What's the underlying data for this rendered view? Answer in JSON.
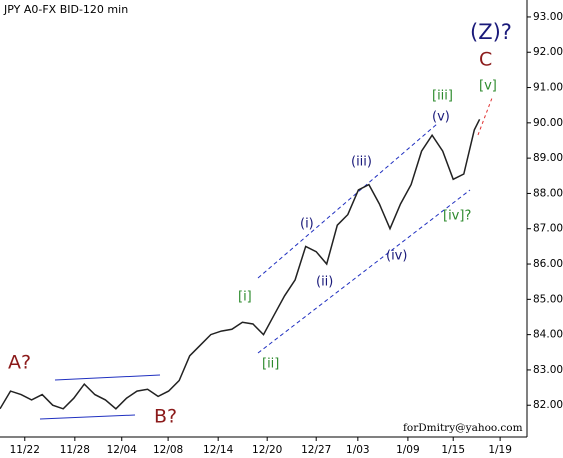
{
  "chart_data": {
    "type": "line",
    "title": "JPY A0-FX BID-120 min",
    "watermark": "forDmitry@yahoo.com",
    "color": "#222222",
    "x": [
      0,
      2,
      4,
      6,
      8,
      10,
      12,
      14,
      16,
      18,
      20,
      22,
      24,
      26,
      28,
      30,
      32,
      34,
      36,
      38,
      40,
      42,
      44,
      46,
      48,
      50,
      52,
      54,
      56,
      58,
      60,
      62,
      64,
      66,
      68,
      70,
      72,
      74,
      76,
      78,
      80,
      82,
      84,
      86,
      88,
      90,
      91
    ],
    "values": [
      81.9,
      82.4,
      82.3,
      82.15,
      82.3,
      82.0,
      81.9,
      82.2,
      82.6,
      82.3,
      82.15,
      81.9,
      82.2,
      82.4,
      82.45,
      82.25,
      82.4,
      82.7,
      83.4,
      83.7,
      84.0,
      84.1,
      84.15,
      84.35,
      84.3,
      84.0,
      84.55,
      85.1,
      85.55,
      86.5,
      86.35,
      86.0,
      87.1,
      87.4,
      88.1,
      88.25,
      87.7,
      87.0,
      87.7,
      88.25,
      89.2,
      89.65,
      89.2,
      88.4,
      88.55,
      89.8,
      90.1
    ],
    "xlim": [
      0,
      100
    ],
    "xticks": [
      {
        "value": 4.7,
        "label": "11/22"
      },
      {
        "value": 14.2,
        "label": "11/28"
      },
      {
        "value": 23.1,
        "label": "12/04"
      },
      {
        "value": 31.9,
        "label": "12/08"
      },
      {
        "value": 41.4,
        "label": "12/14"
      },
      {
        "value": 50.7,
        "label": "12/20"
      },
      {
        "value": 60,
        "label": "12/27"
      },
      {
        "value": 67.9,
        "label": "1/03"
      },
      {
        "value": 77.4,
        "label": "1/09"
      },
      {
        "value": 86,
        "label": "1/15"
      },
      {
        "value": 94.9,
        "label": "1/19"
      }
    ],
    "ylim": [
      81.1,
      93.48
    ],
    "yticks": [
      {
        "value": 82,
        "label": "82.00"
      },
      {
        "value": 83,
        "label": "83.00"
      },
      {
        "value": 84,
        "label": "84.00"
      },
      {
        "value": 85,
        "label": "85.00"
      },
      {
        "value": 86,
        "label": "86.00"
      },
      {
        "value": 87,
        "label": "87.00"
      },
      {
        "value": 88,
        "label": "88.00"
      },
      {
        "value": 89,
        "label": "89.00"
      },
      {
        "value": 90,
        "label": "90.00"
      },
      {
        "value": 91,
        "label": "91.00"
      },
      {
        "value": 92,
        "label": "92.00"
      },
      {
        "value": 93,
        "label": "93.00"
      }
    ],
    "annotations": [
      "A?",
      "B?",
      "C",
      "(Z)?",
      "[i]",
      "[ii]",
      "[iii]",
      "[iv]?",
      "[v]",
      "(i)",
      "(ii)",
      "(iii)",
      "(iv)",
      "(v)"
    ]
  }
}
